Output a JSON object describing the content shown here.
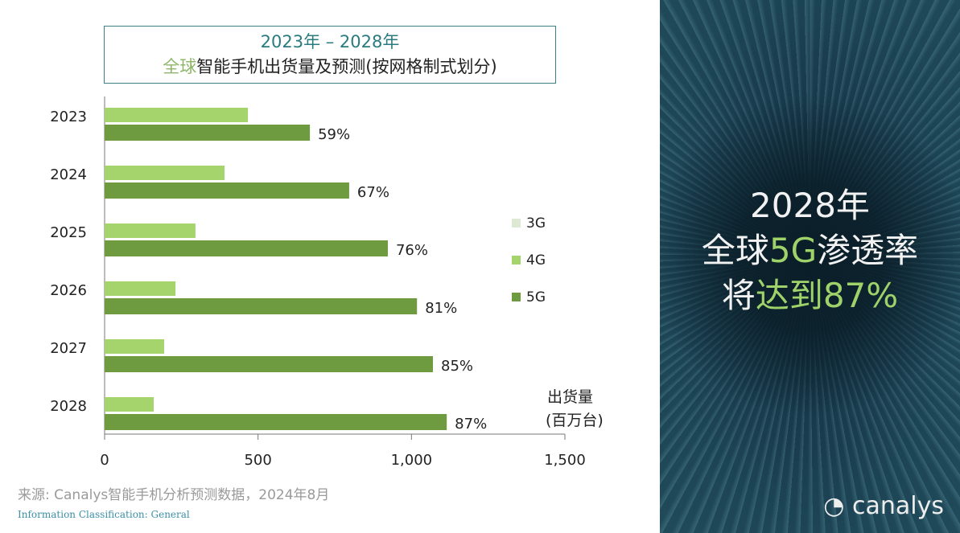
{
  "chart_data": {
    "type": "bar",
    "orientation": "horizontal",
    "title": "2023年 – 2028年",
    "subtitle_highlight": "全球",
    "subtitle_rest": "智能手机出货量及预测(按网格制式划分)",
    "categories": [
      "2023",
      "2024",
      "2025",
      "2026",
      "2027",
      "2028"
    ],
    "series": [
      {
        "name": "3G",
        "color": "#dde9d2",
        "values": [
          0,
          0,
          0,
          0,
          0,
          0
        ]
      },
      {
        "name": "4G",
        "color": "#a4d46b",
        "values": [
          467,
          391,
          296,
          231,
          194,
          160
        ]
      },
      {
        "name": "5G",
        "color": "#6e9b3f",
        "values": [
          669,
          797,
          923,
          1018,
          1070,
          1115
        ]
      }
    ],
    "data_labels_5g": [
      "59%",
      "67%",
      "76%",
      "81%",
      "85%",
      "87%"
    ],
    "xlim": [
      0,
      1500
    ],
    "xticks": [
      "0",
      "500",
      "1,000",
      "1,500"
    ],
    "xlabel_line1": "出货量",
    "xlabel_line2": "(百万台)",
    "legend_placement": "right",
    "grid": false
  },
  "side": {
    "line1": "2028年",
    "line2_a": "全球",
    "line2_b": "5G",
    "line2_c": "渗透率",
    "line3_a": "将",
    "line3_b": "达到87%"
  },
  "footer": {
    "source": "来源: Canalys智能手机分析预测数据，2024年8月",
    "classification": "Information Classification: General",
    "logo": "canalys"
  }
}
